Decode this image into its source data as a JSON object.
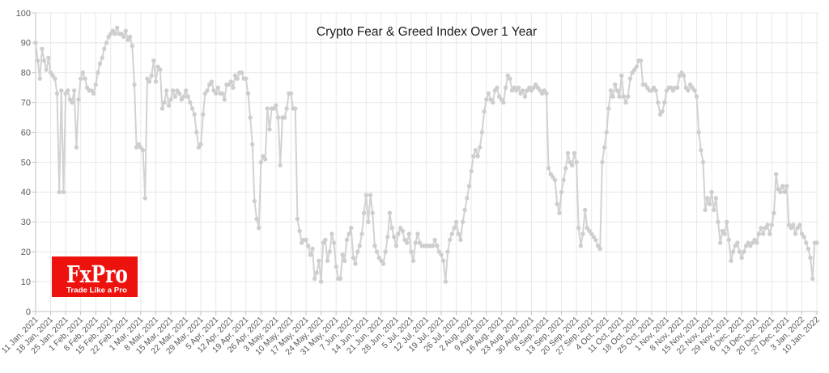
{
  "chart_data": {
    "type": "line",
    "title": "Crypto Fear & Greed Index Over 1 Year",
    "xlabel": "",
    "ylabel": "",
    "ylim": [
      0,
      100
    ],
    "y_ticks": [
      0,
      10,
      20,
      30,
      40,
      50,
      60,
      70,
      80,
      90,
      100
    ],
    "grid": true,
    "legend": "none",
    "marker": "circle",
    "x_tick_labels": [
      "11 Jan, 2021",
      "18 Jan, 2021",
      "25 Jan, 2021",
      "1 Feb, 2021",
      "8 Feb, 2021",
      "15 Feb, 2021",
      "22 Feb, 2021",
      "1 Mar, 2021",
      "8 Mar, 2021",
      "15 Mar, 2021",
      "22 Mar, 2021",
      "29 Mar, 2021",
      "5 Apr, 2021",
      "12 Apr, 2021",
      "19 Apr, 2021",
      "26 Apr, 2021",
      "3 May, 2021",
      "10 May, 2021",
      "17 May, 2021",
      "24 May, 2021",
      "31 May, 2021",
      "7 Jun, 2021",
      "14 Jun, 2021",
      "21 Jun, 2021",
      "28 Jun, 2021",
      "5 Jul, 2021",
      "12 Jul, 2021",
      "19 Jul, 2021",
      "26 Jul, 2021",
      "2 Aug, 2021",
      "9 Aug, 2021",
      "16 Aug, 2021",
      "23 Aug, 2021",
      "30 Aug, 2021",
      "6 Sep, 2021",
      "13 Sep, 2021",
      "20 Sep, 2021",
      "27 Sep, 2021",
      "4 Oct, 2021",
      "11 Oct, 2021",
      "18 Oct, 2021",
      "25 Oct, 2021",
      "1 Nov, 2021",
      "8 Nov, 2021",
      "15 Nov, 2021",
      "22 Nov, 2021",
      "29 Nov, 2021",
      "6 Dec, 2021",
      "13 Dec, 2021",
      "20 Dec, 2021",
      "27 Dec, 2021",
      "3 Jan, 2022",
      "10 Jan, 2022"
    ],
    "x_unit": "day",
    "points_per_tick": 7,
    "values": [
      90,
      84,
      78,
      88,
      84,
      81,
      85,
      80,
      79,
      78,
      73,
      40,
      74,
      40,
      73,
      74,
      71,
      70,
      74,
      55,
      71,
      78,
      80,
      78,
      75,
      74,
      74,
      73,
      76,
      80,
      83,
      85,
      88,
      90,
      92,
      93,
      94,
      93,
      95,
      93,
      93,
      92,
      94,
      91,
      92,
      89,
      76,
      55,
      56,
      55,
      54,
      38,
      78,
      77,
      79,
      84,
      77,
      82,
      81,
      68,
      70,
      74,
      69,
      71,
      74,
      72,
      74,
      73,
      71,
      72,
      74,
      72,
      70,
      68,
      66,
      60,
      55,
      56,
      66,
      73,
      74,
      76,
      77,
      74,
      73,
      75,
      73,
      73,
      71,
      76,
      76,
      77,
      75,
      79,
      78,
      80,
      80,
      78,
      78,
      73,
      65,
      56,
      37,
      31,
      28,
      50,
      52,
      51,
      68,
      61,
      68,
      68,
      69,
      65,
      49,
      65,
      65,
      68,
      73,
      73,
      68,
      68,
      31,
      27,
      23,
      24,
      24,
      22,
      19,
      21,
      11,
      13,
      17,
      10,
      23,
      24,
      17,
      20,
      26,
      23,
      15,
      11,
      11,
      19,
      17,
      24,
      26,
      28,
      18,
      16,
      20,
      22,
      26,
      33,
      39,
      30,
      39,
      33,
      22,
      20,
      18,
      17,
      16,
      20,
      25,
      33,
      28,
      25,
      22,
      26,
      28,
      27,
      24,
      23,
      26,
      20,
      17,
      23,
      26,
      23,
      22,
      22,
      22,
      22,
      22,
      22,
      24,
      22,
      20,
      19,
      17,
      10,
      20,
      24,
      26,
      28,
      30,
      26,
      24,
      30,
      34,
      38,
      42,
      47,
      52,
      54,
      52,
      55,
      60,
      67,
      71,
      73,
      71,
      70,
      74,
      75,
      72,
      71,
      70,
      75,
      79,
      78,
      74,
      75,
      74,
      75,
      73,
      74,
      72,
      74,
      75,
      74,
      75,
      76,
      75,
      74,
      73,
      74,
      73,
      48,
      46,
      45,
      44,
      36,
      33,
      40,
      44,
      48,
      53,
      50,
      49,
      53,
      50,
      28,
      22,
      26,
      34,
      28,
      27,
      26,
      25,
      24,
      22,
      21,
      50,
      55,
      60,
      68,
      74,
      72,
      76,
      74,
      72,
      79,
      72,
      70,
      72,
      78,
      80,
      81,
      82,
      84,
      84,
      76,
      76,
      75,
      74,
      74,
      75,
      74,
      70,
      66,
      67,
      70,
      74,
      75,
      75,
      74,
      75,
      75,
      79,
      80,
      79,
      75,
      74,
      76,
      75,
      74,
      72,
      60,
      54,
      50,
      34,
      38,
      36,
      40,
      34,
      38,
      30,
      23,
      27,
      26,
      30,
      24,
      17,
      20,
      22,
      23,
      20,
      18,
      20,
      22,
      23,
      22,
      23,
      24,
      23,
      26,
      28,
      26,
      28,
      29,
      26,
      29,
      33,
      46,
      41,
      40,
      42,
      40,
      42,
      29,
      28,
      29,
      26,
      28,
      29,
      26,
      25,
      23,
      21,
      18,
      11,
      23,
      23
    ],
    "colors": {
      "line": "#d2d2d2",
      "marker": "#cecece",
      "grid": "#e8e8e8",
      "axis": "#c2c2c2",
      "tick_text": "#595959",
      "title_text": "#1c1c1c"
    }
  },
  "logo": {
    "brand": "FxPro",
    "tagline": "Trade Like a Pro",
    "background": "#ed120e",
    "text_color": "#ffffff"
  }
}
